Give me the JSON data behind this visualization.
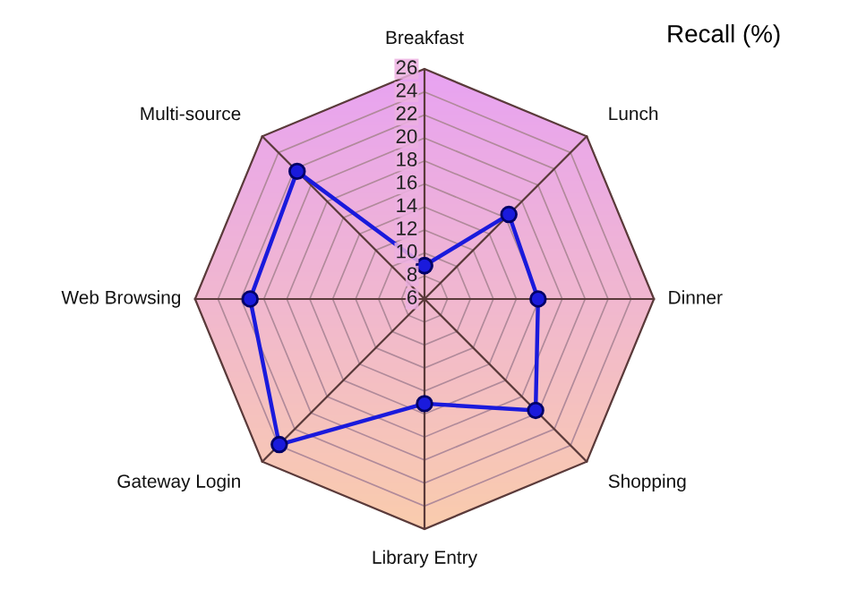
{
  "chart_data": {
    "type": "radar",
    "title": "Recall (%)",
    "categories": [
      "Breakfast",
      "Lunch",
      "Dinner",
      "Shopping",
      "Library Entry",
      "Gateway Login",
      "Web Browsing",
      "Multi-source"
    ],
    "series": [
      {
        "color": "#1a1adc",
        "values": [
          8.9,
          16.4,
          15.9,
          19.7,
          15.1,
          23.9,
          21.2,
          21.7
        ]
      }
    ],
    "ylim": [
      6,
      26
    ],
    "yticks": [
      6,
      8,
      10,
      12,
      14,
      16,
      18,
      20,
      22,
      24,
      26
    ],
    "marker": "circle",
    "line_style": "solid",
    "grid": true
  }
}
